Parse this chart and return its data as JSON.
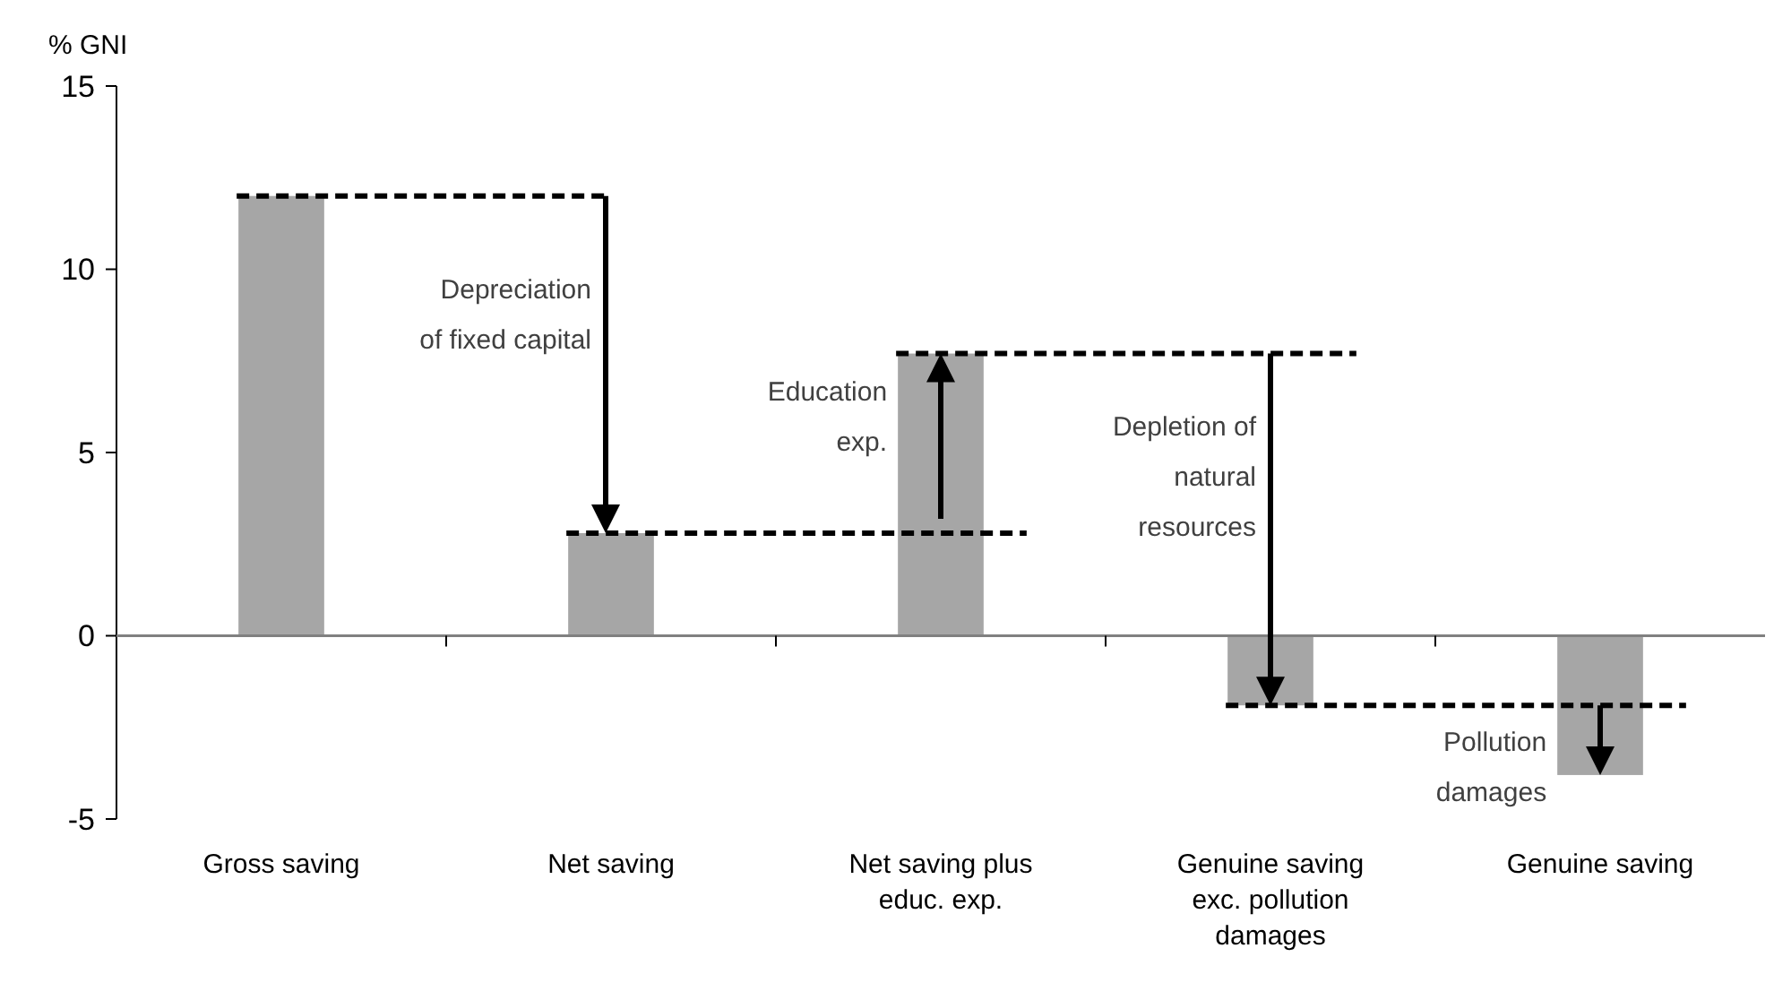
{
  "chart_data": {
    "type": "bar",
    "ylabel": "% GNI",
    "categories": [
      "Gross saving",
      "Net saving",
      "Net saving plus educ. exp.",
      "Genuine saving exc. pollution damages",
      "Genuine saving"
    ],
    "values": [
      12,
      2.8,
      7.7,
      -1.9,
      -3.8
    ],
    "color": "#a6a6a6",
    "ylim": [
      -5,
      15
    ],
    "yticks": [
      -5,
      0,
      5,
      10,
      15
    ],
    "annotations": [
      "Depreciation\nof fixed capital",
      "Education\nexp.",
      "Depletion of\nnatural\nresources",
      "Pollution\ndamages"
    ]
  }
}
